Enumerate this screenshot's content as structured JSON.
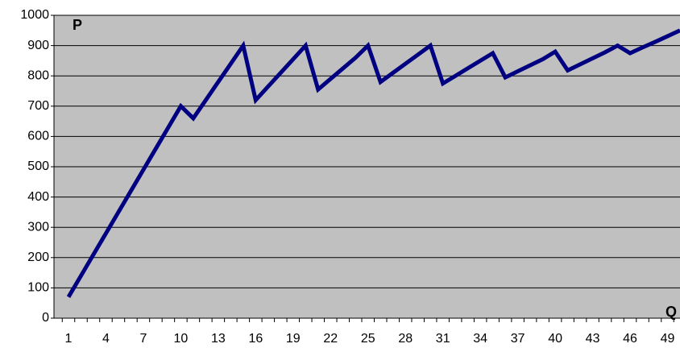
{
  "chart_data": {
    "type": "line",
    "y_label": "P",
    "x_label": "Q",
    "categories": [
      "1",
      null,
      null,
      "4",
      null,
      null,
      "7",
      null,
      null,
      "10",
      null,
      null,
      "13",
      null,
      null,
      "16",
      null,
      null,
      "19",
      null,
      null,
      "22",
      null,
      null,
      "25",
      null,
      null,
      "28",
      null,
      null,
      "31",
      null,
      null,
      "34",
      null,
      null,
      "37",
      null,
      null,
      "40",
      null,
      null,
      "43",
      null,
      null,
      "46",
      null,
      null,
      "49",
      null
    ],
    "series": [
      {
        "name": "P",
        "color": "#000080",
        "values": [
          70,
          140,
          210,
          280,
          350,
          420,
          490,
          560,
          630,
          700,
          660,
          720,
          780,
          840,
          900,
          720,
          765,
          810,
          855,
          900,
          755,
          790,
          825,
          860,
          900,
          780,
          810,
          840,
          870,
          900,
          775,
          800,
          825,
          850,
          875,
          795,
          815,
          835,
          855,
          880,
          818,
          838,
          858,
          878,
          900,
          875,
          894,
          912,
          931,
          950
        ]
      }
    ],
    "ylim": [
      0,
      1000
    ],
    "yticks": [
      0,
      100,
      200,
      300,
      400,
      500,
      600,
      700,
      800,
      900,
      1000
    ],
    "grid": true,
    "background": "#c0c0c0"
  }
}
